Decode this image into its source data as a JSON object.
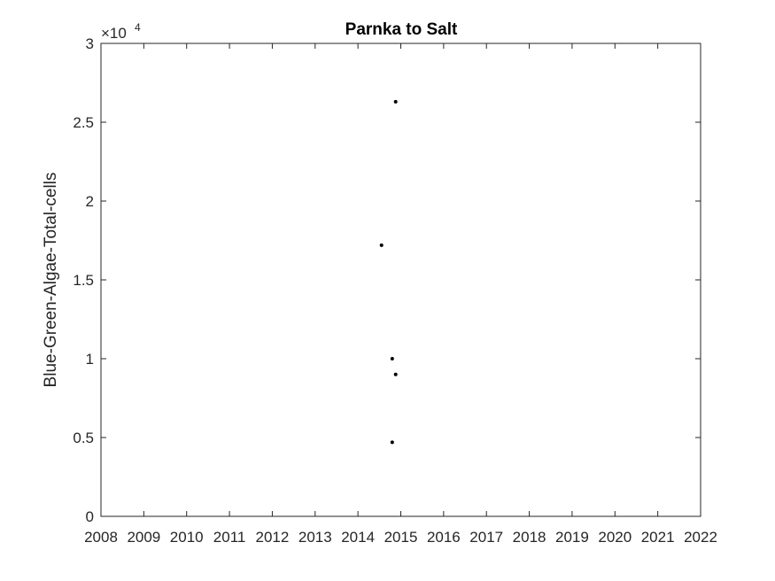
{
  "chart_data": {
    "type": "scatter",
    "title": "Parnka to Salt",
    "xlabel": "",
    "ylabel": "Blue-Green-Algae-Total-cells",
    "x_ticks": [
      "2008",
      "2009",
      "2010",
      "2011",
      "2012",
      "2013",
      "2014",
      "2015",
      "2016",
      "2017",
      "2018",
      "2019",
      "2020",
      "2021",
      "2022"
    ],
    "y_ticks": [
      "0",
      "0.5",
      "1",
      "1.5",
      "2",
      "2.5",
      "3"
    ],
    "y_exponent": {
      "base": "×10",
      "power": "4"
    },
    "xlim": [
      2008,
      2022
    ],
    "ylim": [
      0,
      30000
    ],
    "grid": false,
    "marker_color": "#000000",
    "series": [
      {
        "points": [
          {
            "x": 2014.55,
            "y": 17200
          },
          {
            "x": 2014.8,
            "y": 10000
          },
          {
            "x": 2014.8,
            "y": 4700
          },
          {
            "x": 2014.88,
            "y": 26300
          },
          {
            "x": 2014.88,
            "y": 9000
          }
        ]
      }
    ]
  }
}
